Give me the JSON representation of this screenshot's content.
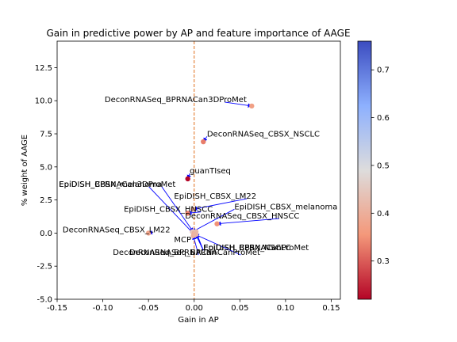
{
  "chart_data": {
    "type": "scatter",
    "title": "Gain in predictive power by AP and feature importance of AAGE",
    "xlabel": "Gain in AP",
    "ylabel": "% weight of AAGE",
    "xlim": [
      -0.15,
      0.16
    ],
    "ylim": [
      -5.0,
      14.5
    ],
    "x_ticks": [
      "-0.15",
      "-0.10",
      "-0.05",
      "0.00",
      "0.05",
      "0.10",
      "0.15"
    ],
    "x_tick_values": [
      -0.15,
      -0.1,
      -0.05,
      0.0,
      0.05,
      0.1,
      0.15
    ],
    "y_ticks": [
      "-5.0",
      "-2.5",
      "0.0",
      "2.5",
      "5.0",
      "7.5",
      "10.0",
      "12.5"
    ],
    "y_tick_values": [
      -5.0,
      -2.5,
      0.0,
      2.5,
      5.0,
      7.5,
      10.0,
      12.5
    ],
    "vline_x": 0.0,
    "vline_color": "#e0701e",
    "colorbar": {
      "min": 0.22,
      "max": 0.76,
      "ticks": [
        "0.3",
        "0.4",
        "0.5",
        "0.6",
        "0.7"
      ],
      "tick_values": [
        0.3,
        0.4,
        0.5,
        0.6,
        0.7
      ],
      "colormap": "coolwarm_r"
    },
    "points": [
      {
        "label": "DeconRNASeq_BPRNACan3DProMet",
        "x": 0.063,
        "y": 9.6,
        "c": 0.37,
        "lx": -0.098,
        "ly": 9.9,
        "arrow": true
      },
      {
        "label": "DeconRNASeq_CBSX_NSCLC",
        "x": 0.01,
        "y": 6.9,
        "c": 0.33,
        "lx": 0.014,
        "ly": 7.3,
        "arrow": true
      },
      {
        "label": "guanTIseq",
        "x": -0.007,
        "y": 4.1,
        "c": 0.22,
        "lx": -0.005,
        "ly": 4.5,
        "arrow": true
      },
      {
        "label": "EpiDISH_CBSX_LM22",
        "x": -0.001,
        "y": 1.8,
        "c": 0.4,
        "lx": -0.022,
        "ly": 2.6,
        "arrow": true
      },
      {
        "label": "EpiDISH_CBSX_melanoma",
        "x": -0.002,
        "y": 0.1,
        "c": 0.43,
        "lx": 0.044,
        "ly": 1.8,
        "arrow": true
      },
      {
        "label": "EpiDISH_CBSX_HNSCC",
        "x": -0.007,
        "y": 1.5,
        "c": 0.33,
        "lx": -0.077,
        "ly": 1.6,
        "arrow": true
      },
      {
        "label": "DeconRNASeq_CBSX_HNSCC",
        "x": 0.025,
        "y": 0.7,
        "c": 0.35,
        "lx": -0.01,
        "ly": 1.1,
        "arrow": true
      },
      {
        "label": "EpiDISH_BPRNACan3DProMet",
        "x": -0.001,
        "y": 0.1,
        "c": 0.45,
        "lx": -0.148,
        "ly": 3.5,
        "arrow": true
      },
      {
        "label": "EpiDISH_CBSX_melanoma",
        "x": 0.0,
        "y": -0.1,
        "c": 0.45,
        "lx": -0.148,
        "ly": 3.5,
        "arrow": true
      },
      {
        "label": "DeconRNASeq_CBSX_LM22",
        "x": -0.05,
        "y": 0.0,
        "c": 0.38,
        "lx": -0.144,
        "ly": 0.05,
        "arrow": true
      },
      {
        "label": "MCP",
        "x": 0.0,
        "y": 0.0,
        "c": 0.4,
        "lx": -0.022,
        "ly": -0.7,
        "arrow": false
      },
      {
        "label": "EpiDISH_BPRNACan",
        "x": 0.001,
        "y": 0.0,
        "c": 0.41,
        "lx": 0.01,
        "ly": -1.3,
        "arrow": true
      },
      {
        "label": "EpiDISH_CBSX_NSCLC",
        "x": 0.002,
        "y": 0.1,
        "c": 0.42,
        "lx": 0.01,
        "ly": -1.3,
        "arrow": true
      },
      {
        "label": "EpiDISH_BPRNACanProMet",
        "x": 0.002,
        "y": -0.1,
        "c": 0.42,
        "lx": 0.01,
        "ly": -1.3,
        "arrow": true
      },
      {
        "label": "DeconRNASeq_BPRNACan",
        "x": -0.001,
        "y": -0.2,
        "c": 0.4,
        "lx": -0.089,
        "ly": -1.65,
        "arrow": true
      },
      {
        "label": "DeconRNASeq_BPRNACanProMet",
        "x": 0.001,
        "y": -0.1,
        "c": 0.41,
        "lx": -0.071,
        "ly": -1.65,
        "arrow": true
      }
    ]
  }
}
